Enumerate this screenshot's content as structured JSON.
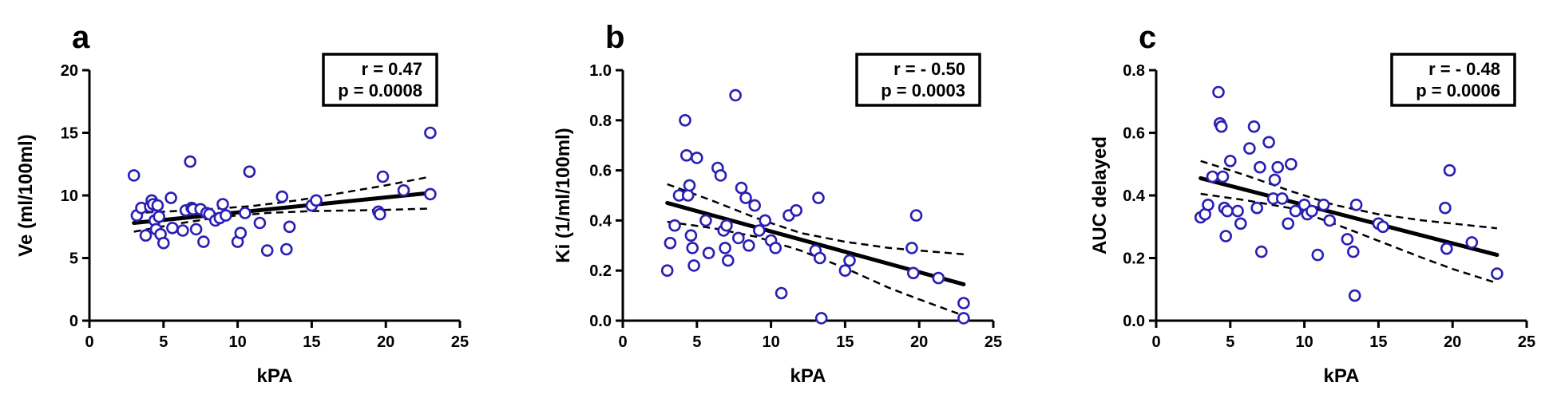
{
  "colors": {
    "points": "#2a1fb4",
    "lines": "#000000"
  },
  "chart_data": [
    {
      "type": "scatter",
      "panel": "a",
      "xlabel": "kPA",
      "ylabel": "Ve (ml/100ml)",
      "xlim": [
        0,
        25
      ],
      "ylim": [
        0,
        20
      ],
      "xticks": [
        "0",
        "5",
        "10",
        "15",
        "20",
        "25"
      ],
      "yticks": [
        "0",
        "5",
        "10",
        "15",
        "20"
      ],
      "stats": {
        "r": "r = 0.47",
        "p": "p = 0.0008"
      },
      "fit": {
        "x": [
          3.0,
          23.0
        ],
        "y": [
          7.8,
          10.2
        ]
      },
      "ci_upper": {
        "x": [
          3,
          5,
          8,
          11,
          14,
          17,
          20,
          23
        ],
        "y": [
          8.6,
          8.7,
          8.9,
          9.15,
          9.6,
          10.2,
          10.8,
          11.5
        ]
      },
      "ci_lower": {
        "x": [
          3,
          6,
          9,
          12,
          15,
          18,
          20,
          23
        ],
        "y": [
          7.1,
          7.75,
          8.3,
          8.6,
          8.75,
          8.8,
          8.85,
          8.95
        ]
      },
      "points": {
        "x": [
          3.0,
          3.2,
          3.5,
          3.8,
          4.1,
          4.2,
          4.3,
          4.4,
          4.5,
          4.6,
          4.7,
          4.8,
          5.0,
          5.5,
          5.6,
          6.3,
          6.5,
          6.8,
          6.9,
          7.0,
          7.2,
          7.5,
          7.7,
          7.9,
          8.1,
          8.5,
          8.8,
          9.0,
          9.2,
          10.0,
          10.2,
          10.5,
          10.8,
          11.5,
          12.0,
          13.0,
          13.3,
          13.5,
          15.0,
          15.3,
          19.5,
          19.6,
          19.8,
          21.2,
          23.0,
          23.0
        ],
        "y": [
          11.6,
          8.4,
          9.0,
          6.8,
          9.1,
          9.6,
          9.3,
          8.0,
          7.3,
          9.2,
          8.3,
          6.9,
          6.2,
          9.8,
          7.4,
          7.2,
          8.8,
          12.7,
          9.0,
          8.9,
          7.3,
          8.9,
          6.3,
          8.6,
          8.5,
          8.0,
          8.2,
          9.3,
          8.4,
          6.3,
          7.0,
          8.6,
          11.9,
          7.8,
          5.6,
          9.9,
          5.7,
          7.5,
          9.2,
          9.6,
          8.7,
          8.5,
          11.5,
          10.4,
          15.0,
          10.1
        ]
      }
    },
    {
      "type": "scatter",
      "panel": "b",
      "xlabel": "kPA",
      "ylabel": "Ki (1/ml/100ml)",
      "xlim": [
        0,
        25
      ],
      "ylim": [
        0,
        1.0
      ],
      "xticks": [
        "0",
        "5",
        "10",
        "15",
        "20",
        "25"
      ],
      "yticks": [
        "0.0",
        "0.2",
        "0.4",
        "0.6",
        "0.8",
        "1.0"
      ],
      "stats": {
        "r": "r = - 0.50",
        "p": "p = 0.0003"
      },
      "fit": {
        "x": [
          3.0,
          23.0
        ],
        "y": [
          0.47,
          0.145
        ]
      },
      "ci_upper": {
        "x": [
          3,
          6,
          9,
          12,
          15,
          18,
          20,
          23
        ],
        "y": [
          0.545,
          0.48,
          0.41,
          0.35,
          0.315,
          0.29,
          0.28,
          0.265
        ]
      },
      "ci_lower": {
        "x": [
          3,
          6,
          9,
          12,
          15,
          18,
          20,
          23
        ],
        "y": [
          0.395,
          0.37,
          0.335,
          0.28,
          0.21,
          0.13,
          0.085,
          0.02
        ]
      },
      "points": {
        "x": [
          3.0,
          3.2,
          3.5,
          3.8,
          4.2,
          4.3,
          4.4,
          4.5,
          4.6,
          4.7,
          4.8,
          5.0,
          5.6,
          5.8,
          6.4,
          6.6,
          6.8,
          6.9,
          7.0,
          7.1,
          7.6,
          7.8,
          8.0,
          8.3,
          8.5,
          8.9,
          9.2,
          9.6,
          10.0,
          10.3,
          10.7,
          11.2,
          11.7,
          13.0,
          13.2,
          13.3,
          13.4,
          15.0,
          15.3,
          19.5,
          19.6,
          19.8,
          21.3,
          23.0,
          23.0
        ],
        "y": [
          0.2,
          0.31,
          0.38,
          0.5,
          0.8,
          0.66,
          0.5,
          0.54,
          0.34,
          0.29,
          0.22,
          0.65,
          0.4,
          0.27,
          0.61,
          0.58,
          0.36,
          0.29,
          0.38,
          0.24,
          0.9,
          0.33,
          0.53,
          0.49,
          0.3,
          0.46,
          0.36,
          0.4,
          0.32,
          0.29,
          0.11,
          0.42,
          0.44,
          0.28,
          0.49,
          0.25,
          0.01,
          0.2,
          0.24,
          0.29,
          0.19,
          0.42,
          0.17,
          0.07,
          0.01
        ]
      }
    },
    {
      "type": "scatter",
      "panel": "c",
      "xlabel": "kPA",
      "ylabel": "AUC delayed",
      "xlim": [
        0,
        25
      ],
      "ylim": [
        0,
        0.8
      ],
      "xticks": [
        "0",
        "5",
        "10",
        "15",
        "20",
        "25"
      ],
      "yticks": [
        "0.0",
        "0.2",
        "0.4",
        "0.6",
        "0.8"
      ],
      "stats": {
        "r": "r = - 0.48",
        "p": "p = 0.0006"
      },
      "fit": {
        "x": [
          3.0,
          23.0
        ],
        "y": [
          0.455,
          0.21
        ]
      },
      "ci_upper": {
        "x": [
          3,
          6,
          9,
          12,
          15,
          18,
          20,
          23
        ],
        "y": [
          0.51,
          0.465,
          0.415,
          0.37,
          0.34,
          0.32,
          0.31,
          0.295
        ]
      },
      "ci_lower": {
        "x": [
          3,
          6,
          9,
          12,
          15,
          18,
          20,
          23
        ],
        "y": [
          0.405,
          0.385,
          0.36,
          0.31,
          0.255,
          0.2,
          0.165,
          0.12
        ]
      },
      "points": {
        "x": [
          3.0,
          3.3,
          3.5,
          3.8,
          4.2,
          4.3,
          4.4,
          4.5,
          4.6,
          4.7,
          4.8,
          5.0,
          5.5,
          5.7,
          6.3,
          6.6,
          6.8,
          7.0,
          7.1,
          7.6,
          7.9,
          8.0,
          8.2,
          8.5,
          8.9,
          9.1,
          9.4,
          10.0,
          10.2,
          10.5,
          10.9,
          11.3,
          11.7,
          12.9,
          13.3,
          13.4,
          13.5,
          15.0,
          15.3,
          19.5,
          19.6,
          19.8,
          21.3,
          23.0
        ],
        "y": [
          0.33,
          0.34,
          0.37,
          0.46,
          0.73,
          0.63,
          0.62,
          0.46,
          0.36,
          0.27,
          0.35,
          0.51,
          0.35,
          0.31,
          0.55,
          0.62,
          0.36,
          0.49,
          0.22,
          0.57,
          0.39,
          0.45,
          0.49,
          0.39,
          0.31,
          0.5,
          0.35,
          0.37,
          0.34,
          0.35,
          0.21,
          0.37,
          0.32,
          0.26,
          0.22,
          0.08,
          0.37,
          0.31,
          0.3,
          0.36,
          0.23,
          0.48,
          0.25,
          0.15
        ]
      }
    }
  ]
}
